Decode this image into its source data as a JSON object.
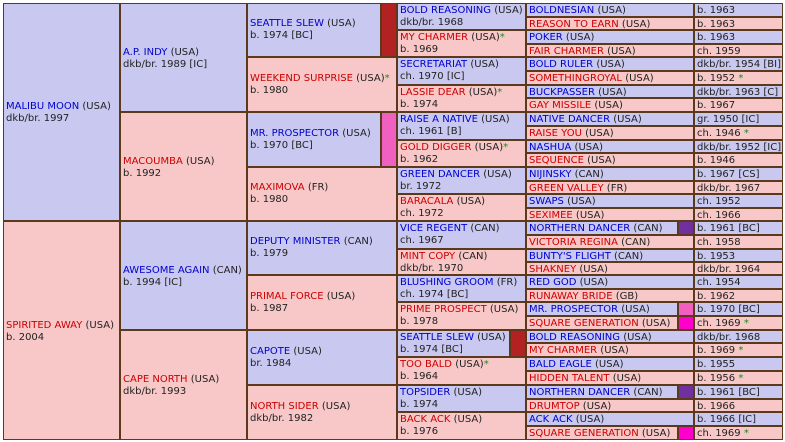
{
  "colors": {
    "male": "#c8c8f0",
    "female": "#f8c8c8",
    "border": "#5a3a1a",
    "male_link": "#0000cc",
    "female_link": "#cc0000",
    "star": "#1a8a1a",
    "inbreed_red": "#b22222",
    "inbreed_pink": "#f060c0",
    "inbreed_purple": "#7030a0",
    "inbreed_magenta": "#ff00cc"
  },
  "g1": [
    {
      "name": "MALIBU MOON",
      "country": "(USA)",
      "info": "dkb/br. 1997"
    },
    {
      "name": "SPIRITED AWAY",
      "country": "(USA)",
      "info": "b. 2004"
    }
  ],
  "g2": [
    {
      "name": "A.P. INDY",
      "country": "(USA)",
      "info": "dkb/br. 1989 [IC]"
    },
    {
      "name": "MACOUMBA",
      "country": "(USA)",
      "info": "b. 1992"
    },
    {
      "name": "AWESOME AGAIN",
      "country": "(CAN)",
      "info": "b. 1994 [IC]"
    },
    {
      "name": "CAPE NORTH",
      "country": "(USA)",
      "info": "dkb/br. 1993"
    }
  ],
  "g3": [
    {
      "name": "SEATTLE SLEW",
      "country": "(USA)",
      "info": "b. 1974 [BC]"
    },
    {
      "name": "WEEKEND SURPRISE",
      "country": "(USA)",
      "star": "*",
      "info": "b. 1980"
    },
    {
      "name": "MR. PROSPECTOR",
      "country": "(USA)",
      "info": "b. 1970 [BC]"
    },
    {
      "name": "MAXIMOVA",
      "country": "(FR)",
      "info": "b. 1980"
    },
    {
      "name": "DEPUTY MINISTER",
      "country": "(CAN)",
      "info": "b. 1979"
    },
    {
      "name": "PRIMAL FORCE",
      "country": "(USA)",
      "info": "b. 1987"
    },
    {
      "name": "CAPOTE",
      "country": "(USA)",
      "info": "br. 1984"
    },
    {
      "name": "NORTH SIDER",
      "country": "(USA)",
      "info": "dkb/br. 1982"
    }
  ],
  "g4": [
    {
      "name": "BOLD REASONING",
      "country": "(USA)",
      "info": "dkb/br. 1968"
    },
    {
      "name": "MY CHARMER",
      "country": "(USA)",
      "star": "*",
      "info": "b. 1969"
    },
    {
      "name": "SECRETARIAT",
      "country": "(USA)",
      "info": "ch. 1970 [IC]"
    },
    {
      "name": "LASSIE DEAR",
      "country": "(USA)",
      "star": "*",
      "info": "b. 1974"
    },
    {
      "name": "RAISE A NATIVE",
      "country": "(USA)",
      "info": "ch. 1961 [B]"
    },
    {
      "name": "GOLD DIGGER",
      "country": "(USA)",
      "star": "*",
      "info": "b. 1962"
    },
    {
      "name": "GREEN DANCER",
      "country": "(USA)",
      "info": "br. 1972"
    },
    {
      "name": "BARACALA",
      "country": "(USA)",
      "info": "ch. 1972"
    },
    {
      "name": "VICE REGENT",
      "country": "(CAN)",
      "info": "ch. 1967"
    },
    {
      "name": "MINT COPY",
      "country": "(CAN)",
      "info": "dkb/br. 1970"
    },
    {
      "name": "BLUSHING GROOM",
      "country": "(FR)",
      "info": "ch. 1974 [BC]"
    },
    {
      "name": "PRIME PROSPECT",
      "country": "(USA)",
      "info": "b. 1978"
    },
    {
      "name": "SEATTLE SLEW",
      "country": "(USA)",
      "info": "b. 1974 [BC]"
    },
    {
      "name": "TOO BALD",
      "country": "(USA)",
      "star": "*",
      "info": "b. 1964"
    },
    {
      "name": "TOPSIDER",
      "country": "(USA)",
      "info": "b. 1974"
    },
    {
      "name": "BACK ACK",
      "country": "(USA)",
      "info": "b. 1976"
    }
  ],
  "g5": [
    {
      "name": "BOLDNESIAN",
      "country": "(USA)",
      "info": "b. 1963"
    },
    {
      "name": "REASON TO EARN",
      "country": "(USA)",
      "info": "b. 1963"
    },
    {
      "name": "POKER",
      "country": "(USA)",
      "info": "b. 1963"
    },
    {
      "name": "FAIR CHARMER",
      "country": "(USA)",
      "info": "ch. 1959"
    },
    {
      "name": "BOLD RULER",
      "country": "(USA)",
      "info": "dkb/br. 1954 [BI]"
    },
    {
      "name": "SOMETHINGROYAL",
      "country": "(USA)",
      "info": "b. 1952",
      "star": "*"
    },
    {
      "name": "BUCKPASSER",
      "country": "(USA)",
      "info": "dkb/br. 1963 [C]"
    },
    {
      "name": "GAY MISSILE",
      "country": "(USA)",
      "info": "b. 1967"
    },
    {
      "name": "NATIVE DANCER",
      "country": "(USA)",
      "info": "gr. 1950 [IC]"
    },
    {
      "name": "RAISE YOU",
      "country": "(USA)",
      "info": "ch. 1946",
      "star": "*"
    },
    {
      "name": "NASHUA",
      "country": "(USA)",
      "info": "dkb/br. 1952 [IC]"
    },
    {
      "name": "SEQUENCE",
      "country": "(USA)",
      "info": "b. 1946"
    },
    {
      "name": "NIJINSKY",
      "country": "(CAN)",
      "info": "b. 1967 [CS]"
    },
    {
      "name": "GREEN VALLEY",
      "country": "(FR)",
      "info": "dkb/br. 1967"
    },
    {
      "name": "SWAPS",
      "country": "(USA)",
      "info": "ch. 1952"
    },
    {
      "name": "SEXIMEE",
      "country": "(USA)",
      "info": "ch. 1966"
    },
    {
      "name": "NORTHERN DANCER",
      "country": "(CAN)",
      "info": "b. 1961 [BC]"
    },
    {
      "name": "VICTORIA REGINA",
      "country": "(CAN)",
      "info": "ch. 1958"
    },
    {
      "name": "BUNTY'S FLIGHT",
      "country": "(CAN)",
      "info": "b. 1953"
    },
    {
      "name": "SHAKNEY",
      "country": "(USA)",
      "info": "dkb/br. 1964"
    },
    {
      "name": "RED GOD",
      "country": "(USA)",
      "info": "ch. 1954"
    },
    {
      "name": "RUNAWAY BRIDE",
      "country": "(GB)",
      "info": "b. 1962"
    },
    {
      "name": "MR. PROSPECTOR",
      "country": "(USA)",
      "info": "b. 1970 [BC]"
    },
    {
      "name": "SQUARE GENERATION",
      "country": "(USA)",
      "info": "ch. 1969",
      "star": "*"
    },
    {
      "name": "BOLD REASONING",
      "country": "(USA)",
      "info": "dkb/br. 1968"
    },
    {
      "name": "MY CHARMER",
      "country": "(USA)",
      "info": "b. 1969",
      "star": "*"
    },
    {
      "name": "BALD EAGLE",
      "country": "(USA)",
      "info": "b. 1955"
    },
    {
      "name": "HIDDEN TALENT",
      "country": "(USA)",
      "info": "b. 1956",
      "star": "*"
    },
    {
      "name": "NORTHERN DANCER",
      "country": "(CAN)",
      "info": "b. 1961 [BC]"
    },
    {
      "name": "DRUMTOP",
      "country": "(USA)",
      "info": "b. 1966"
    },
    {
      "name": "ACK ACK",
      "country": "(USA)",
      "info": "b. 1966 [IC]"
    },
    {
      "name": "SQUARE GENERATION",
      "country": "(USA)",
      "info": "ch. 1969",
      "star": "*"
    }
  ]
}
